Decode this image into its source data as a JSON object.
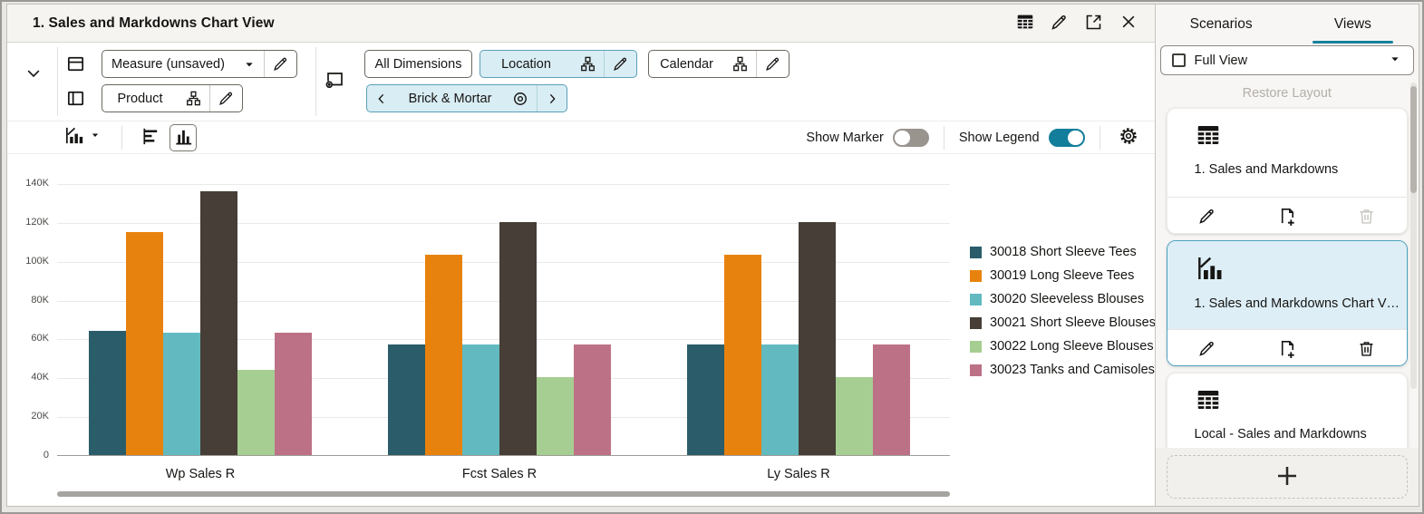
{
  "titlebar": {
    "title": "1. Sales and Markdowns Chart View",
    "icons": [
      "table-view-icon",
      "edit-icon",
      "expand-icon",
      "close-icon"
    ]
  },
  "toolbar": {
    "measure_label": "Measure (unsaved)",
    "product_label": "Product",
    "all_dimensions_label": "All Dimensions",
    "location_label": "Location",
    "calendar_label": "Calendar",
    "breadcrumb_label": "Brick & Mortar"
  },
  "controls": {
    "show_marker_label": "Show Marker",
    "show_marker_on": false,
    "show_legend_label": "Show Legend",
    "show_legend_on": true
  },
  "chart_data": {
    "type": "bar",
    "title": "",
    "categories": [
      "Wp Sales R",
      "Fcst Sales R",
      "Ly Sales R"
    ],
    "series": [
      {
        "name": "30018 Short Sleeve Tees",
        "color": "#2a5d69",
        "values": [
          64000,
          57000,
          57000
        ]
      },
      {
        "name": "30019 Long Sleeve Tees",
        "color": "#e8820e",
        "values": [
          115000,
          103000,
          103000
        ]
      },
      {
        "name": "30020 Sleeveless Blouses",
        "color": "#62bac0",
        "values": [
          63000,
          57000,
          57000
        ]
      },
      {
        "name": "30021 Short Sleeve Blouses",
        "color": "#463e37",
        "values": [
          136000,
          120000,
          120000
        ]
      },
      {
        "name": "30022 Long Sleeve Blouses",
        "color": "#a6ce92",
        "values": [
          44000,
          40000,
          40000
        ]
      },
      {
        "name": "30023 Tanks and Camisoles",
        "color": "#bd7187",
        "values": [
          63000,
          57000,
          57000
        ]
      }
    ],
    "ylim": [
      0,
      140000
    ],
    "ytick_step": 20000,
    "ytick_labels": [
      "0",
      "20K",
      "40K",
      "60K",
      "80K",
      "100K",
      "120K",
      "140K"
    ],
    "grid": true,
    "legend_position": "right"
  },
  "sidebar": {
    "tabs": [
      {
        "label": "Scenarios",
        "active": false
      },
      {
        "label": "Views",
        "active": true
      }
    ],
    "full_view_label": "Full View",
    "restore_label": "Restore Layout",
    "views": [
      {
        "label": "1. Sales and Markdowns",
        "icon": "table-view-icon",
        "selected": false,
        "delete_enabled": false
      },
      {
        "label": "1. Sales and Markdowns Chart V…",
        "icon": "bar-chart-icon",
        "selected": true,
        "delete_enabled": true
      },
      {
        "label": "Local - Sales and Markdowns",
        "icon": "table-view-icon",
        "selected": false,
        "delete_enabled": true
      }
    ]
  },
  "colors": {
    "accent_teal": "#17809b",
    "selected_card_border": "#4aa2c0",
    "selected_card_bg": "#ddeef6",
    "filter_chip_bg": "#d9edf4",
    "filter_chip_border": "#5b9fb8"
  }
}
